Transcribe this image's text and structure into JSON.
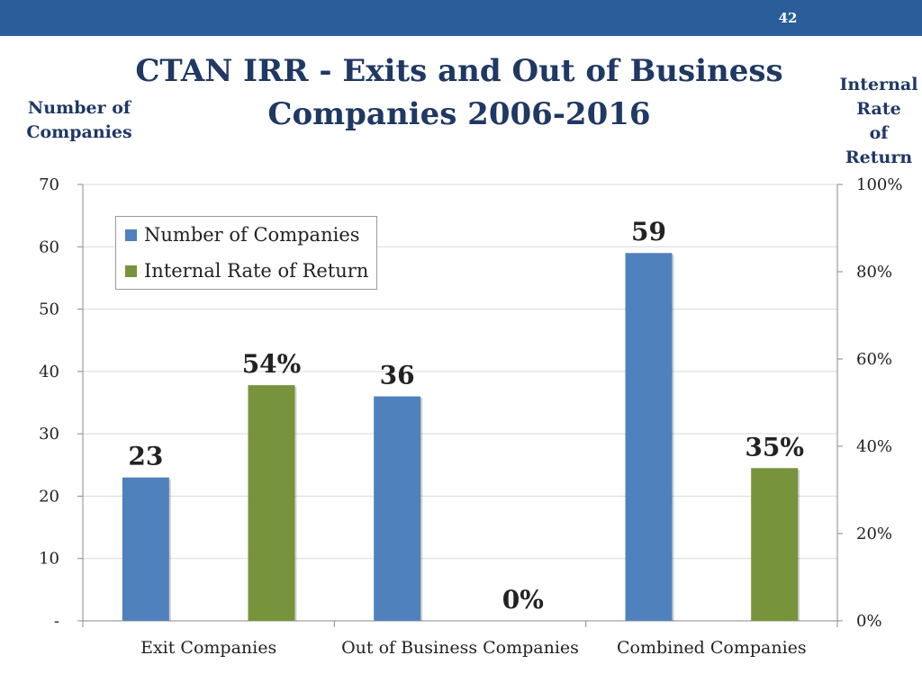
{
  "slide": {
    "page_number": "42"
  },
  "chart_data": {
    "type": "bar",
    "title": "CTAN IRR - Exits and Out of Business Companies 2006-2016",
    "title_lines": [
      "CTAN IRR - Exits and Out of Business",
      "Companies 2006-2016"
    ],
    "left_axis_title_lines": [
      "Number of",
      "Companies"
    ],
    "right_axis_title_lines": [
      "Internal",
      "Rate",
      "of",
      "Return"
    ],
    "categories": [
      "Exit Companies",
      "Out of Business Companies",
      "Combined Companies"
    ],
    "series": [
      {
        "name": "Number of Companies",
        "axis": "left",
        "color": "#4f81bd",
        "values": [
          23,
          36,
          59
        ],
        "labels": [
          "23",
          "36",
          "59"
        ]
      },
      {
        "name": "Internal Rate of Return",
        "axis": "right",
        "color": "#77933c",
        "values": [
          0.54,
          0,
          0.35
        ],
        "labels": [
          "54%",
          "0%",
          "35%"
        ]
      }
    ],
    "left_axis": {
      "ylim": [
        0,
        70
      ],
      "ticks": [
        0,
        10,
        20,
        30,
        40,
        50,
        60,
        70
      ],
      "tick_labels": [
        "-",
        "10",
        "20",
        "30",
        "40",
        "50",
        "60",
        "70"
      ]
    },
    "right_axis": {
      "ylim": [
        0,
        1
      ],
      "ticks": [
        0,
        0.2,
        0.4,
        0.6,
        0.8,
        1.0
      ],
      "tick_labels": [
        "0%",
        "20%",
        "40%",
        "60%",
        "80%",
        "100%"
      ]
    },
    "grid": true,
    "legend_position": "top-left"
  }
}
